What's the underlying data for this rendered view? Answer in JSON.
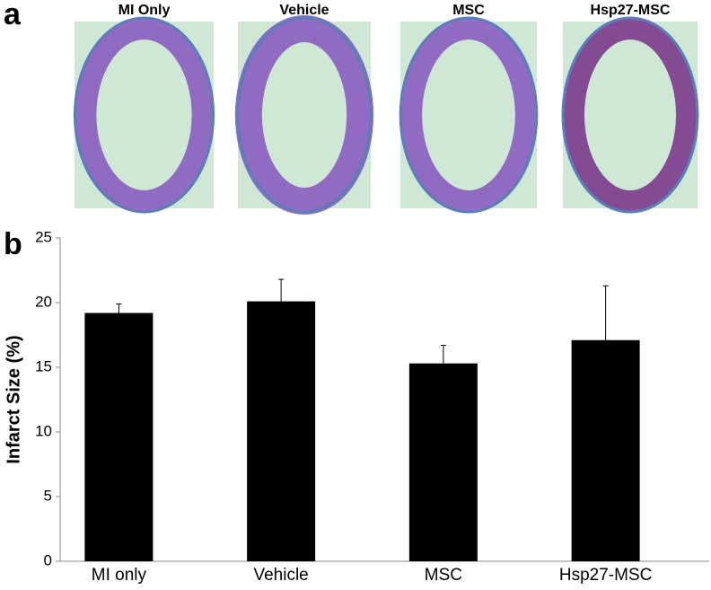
{
  "panel_labels": [
    "a",
    "b"
  ],
  "image_titles": [
    "MI Only",
    "Vehicle",
    "MSC",
    "Hsp27-MSC"
  ],
  "chart_data": {
    "type": "bar",
    "ylabel": "Infarct Size (%)",
    "categories": [
      "MI only",
      "Vehicle",
      "MSC",
      "Hsp27-MSC"
    ],
    "values": [
      19.2,
      20.1,
      15.3,
      17.1
    ],
    "errors": [
      0.7,
      1.7,
      1.4,
      4.2
    ],
    "color": "#000000",
    "ylim": [
      0,
      25
    ],
    "yticks": [
      0,
      5,
      10,
      15,
      20,
      25
    ]
  }
}
